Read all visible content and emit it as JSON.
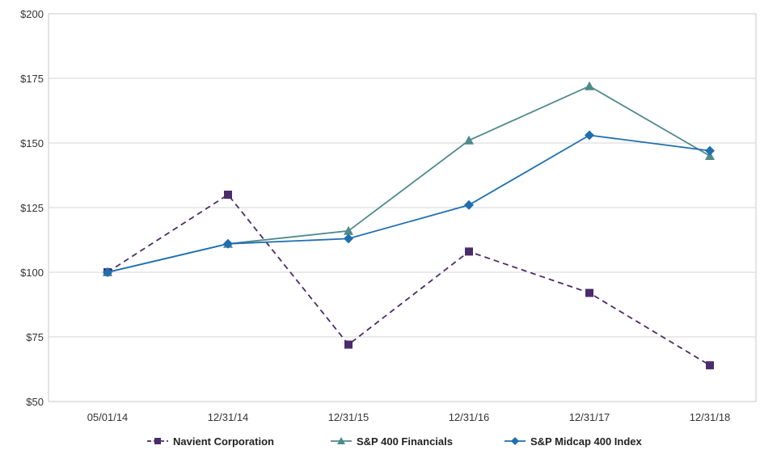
{
  "chart_data": {
    "type": "line",
    "categories": [
      "05/01/14",
      "12/31/14",
      "12/31/15",
      "12/31/16",
      "12/31/17",
      "12/31/18"
    ],
    "ylim": [
      50,
      200
    ],
    "yticks": [
      "$50",
      "$75",
      "$100",
      "$125",
      "$150",
      "$175",
      "$200"
    ],
    "ytick_values": [
      50,
      75,
      100,
      125,
      150,
      175,
      200
    ],
    "grid": true,
    "legend_position": "bottom",
    "series": [
      {
        "name": "Navient Corporation",
        "values": [
          100,
          130,
          72,
          108,
          92,
          64
        ],
        "color": "#4b2c6b",
        "marker": "square",
        "dashed": true
      },
      {
        "name": "S&P 400 Financials",
        "values": [
          100,
          111,
          116,
          151,
          172,
          145
        ],
        "color": "#4f8a8b",
        "marker": "triangle",
        "dashed": false
      },
      {
        "name": "S&P Midcap 400 Index",
        "values": [
          100,
          111,
          113,
          126,
          153,
          147
        ],
        "color": "#1f6fb0",
        "marker": "diamond",
        "dashed": false
      }
    ]
  }
}
